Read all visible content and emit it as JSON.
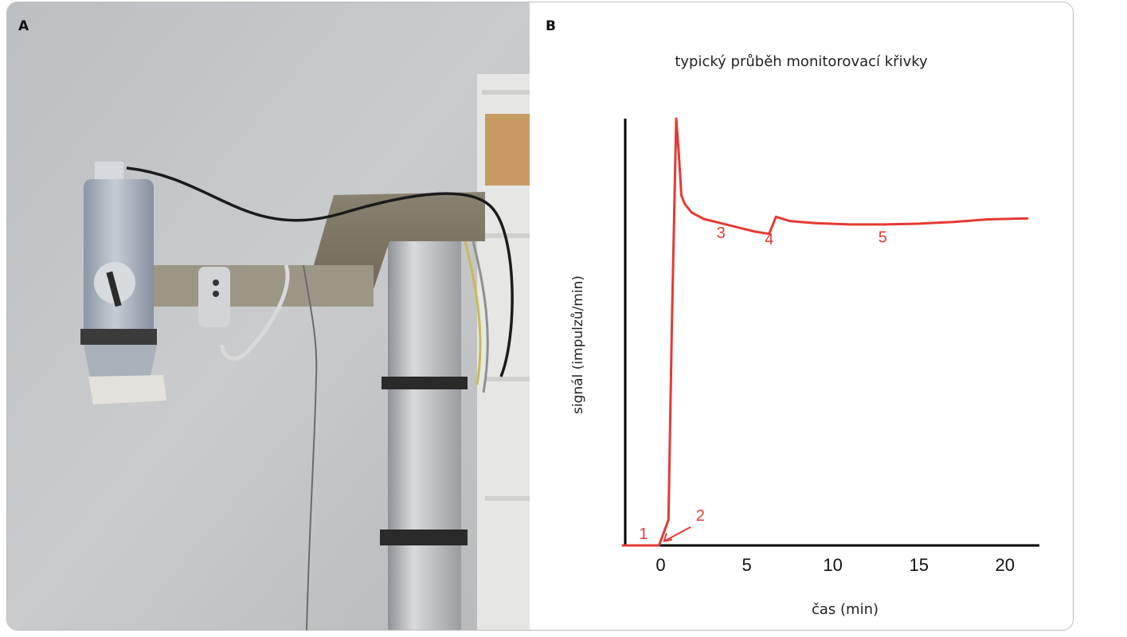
{
  "panels": {
    "a": {
      "label": "A"
    },
    "b": {
      "label": "B"
    }
  },
  "chart_data": {
    "type": "line",
    "title": "typický průběh monitorovací křivky",
    "xlabel": "čas (min)",
    "ylabel": "signál (impulzů/min)",
    "xlim": [
      -2.2,
      22
    ],
    "ylim": [
      0,
      100
    ],
    "xticks": [
      0,
      5,
      10,
      15,
      20
    ],
    "y_tick_labels": "none",
    "grid": false,
    "series": [
      {
        "color": "#e53935",
        "x": [
          -2.2,
          -0.1,
          0.45,
          0.65,
          0.9,
          1.05,
          1.2,
          1.4,
          1.8,
          2.5,
          3.5,
          4.5,
          5.5,
          6.3,
          6.5,
          6.7,
          7.5,
          9,
          11,
          13,
          15,
          17,
          19,
          21,
          21.3
        ],
        "y": [
          0,
          0,
          6,
          52,
          100,
          92,
          82,
          80,
          78,
          76.5,
          75.5,
          74.5,
          73.5,
          73,
          75,
          77,
          76,
          75.5,
          75.2,
          75.2,
          75.4,
          75.8,
          76.4,
          76.6,
          76.6
        ]
      }
    ],
    "annotations": [
      {
        "text": "1",
        "x": -1.0,
        "y": 1.5
      },
      {
        "text": "2",
        "x": 2.3,
        "y": 5.8
      },
      {
        "text": "3",
        "x": 3.5,
        "y": 72
      },
      {
        "text": "4",
        "x": 6.3,
        "y": 70.5
      },
      {
        "text": "5",
        "x": 12.9,
        "y": 71
      }
    ]
  }
}
